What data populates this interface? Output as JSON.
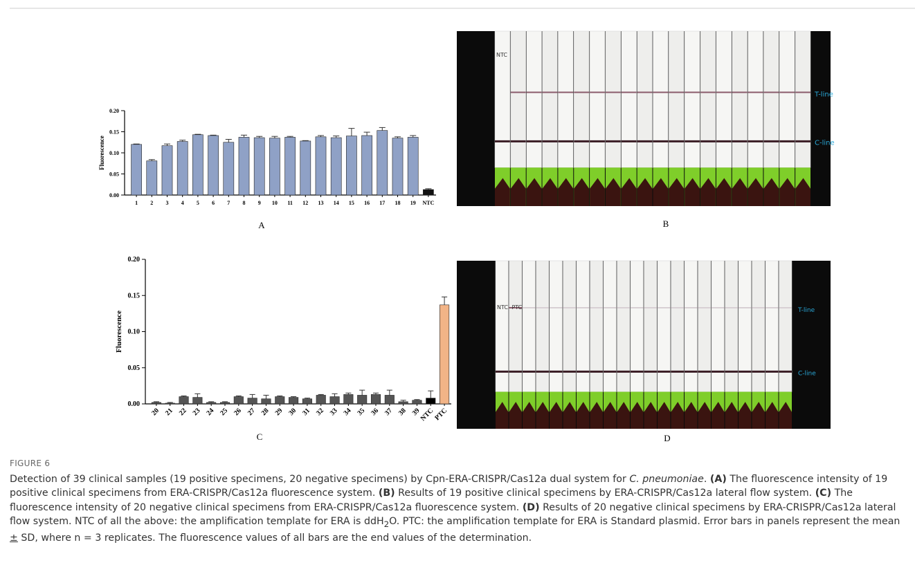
{
  "chart_data": [
    {
      "type": "bar",
      "y_label": "Fluorescence",
      "panel": "A",
      "categories": [
        "1",
        "2",
        "3",
        "4",
        "5",
        "6",
        "7",
        "8",
        "9",
        "10",
        "11",
        "12",
        "13",
        "14",
        "15",
        "16",
        "17",
        "18",
        "19",
        "NTC"
      ],
      "values": [
        0.12,
        0.081,
        0.117,
        0.127,
        0.143,
        0.141,
        0.125,
        0.137,
        0.136,
        0.135,
        0.137,
        0.128,
        0.138,
        0.136,
        0.14,
        0.141,
        0.153,
        0.135,
        0.137,
        0.013
      ],
      "errors": [
        0.001,
        0.003,
        0.004,
        0.003,
        0.001,
        0.001,
        0.007,
        0.005,
        0.003,
        0.004,
        0.002,
        0.001,
        0.003,
        0.004,
        0.018,
        0.008,
        0.007,
        0.003,
        0.004,
        0.002
      ],
      "colors": [
        "#8fa1c6",
        "#8fa1c6",
        "#8fa1c6",
        "#8fa1c6",
        "#8fa1c6",
        "#8fa1c6",
        "#8fa1c6",
        "#8fa1c6",
        "#8fa1c6",
        "#8fa1c6",
        "#8fa1c6",
        "#8fa1c6",
        "#8fa1c6",
        "#8fa1c6",
        "#8fa1c6",
        "#8fa1c6",
        "#8fa1c6",
        "#8fa1c6",
        "#8fa1c6",
        "#111111"
      ],
      "ylim": [
        0,
        0.2
      ],
      "yticks": [
        {
          "value": 0,
          "label": "0.00"
        },
        {
          "value": 0.05,
          "label": "0.05"
        },
        {
          "value": 0.1,
          "label": "0.10"
        },
        {
          "value": 0.15,
          "label": "0.15"
        },
        {
          "value": 0.2,
          "label": "0.20"
        }
      ]
    },
    {
      "type": "bar",
      "y_label": "Fluorescence",
      "panel": "C",
      "categories": [
        "20",
        "21",
        "22",
        "23",
        "24",
        "25",
        "26",
        "27",
        "28",
        "29",
        "30",
        "31",
        "32",
        "33",
        "34",
        "35",
        "36",
        "37",
        "38",
        "39",
        "NTC",
        "PTC"
      ],
      "values": [
        0.002,
        0.001,
        0.01,
        0.009,
        0.002,
        0.002,
        0.01,
        0.008,
        0.007,
        0.01,
        0.009,
        0.007,
        0.012,
        0.01,
        0.013,
        0.012,
        0.013,
        0.012,
        0.003,
        0.005,
        0.008,
        0.137
      ],
      "errors": [
        0.001,
        0.001,
        0.001,
        0.005,
        0.001,
        0.001,
        0.001,
        0.005,
        0.005,
        0.001,
        0.001,
        0.001,
        0.001,
        0.004,
        0.002,
        0.007,
        0.002,
        0.007,
        0.002,
        0.001,
        0.01,
        0.011
      ],
      "colors": [
        "#555555",
        "#555555",
        "#555555",
        "#555555",
        "#555555",
        "#555555",
        "#555555",
        "#555555",
        "#555555",
        "#555555",
        "#555555",
        "#555555",
        "#555555",
        "#555555",
        "#555555",
        "#555555",
        "#555555",
        "#555555",
        "#555555",
        "#555555",
        "#000000",
        "#f2b487"
      ],
      "ylim": [
        0,
        0.2
      ],
      "yticks": [
        {
          "value": 0,
          "label": "0.00"
        },
        {
          "value": 0.05,
          "label": "0.05"
        },
        {
          "value": 0.1,
          "label": "0.10"
        },
        {
          "value": 0.15,
          "label": "0.15"
        },
        {
          "value": 0.2,
          "label": "0.20"
        }
      ]
    }
  ],
  "photos": [
    {
      "panel": "B",
      "labels": [
        "NTC"
      ],
      "t_line": "T-line",
      "c_line": "C-line"
    },
    {
      "panel": "D",
      "labels": [
        "NTC",
        "PTC"
      ],
      "t_line": "T-line",
      "c_line": "C-line"
    }
  ],
  "caption": {
    "figure": "FIGURE 6",
    "parts": [
      "Detection of 39 clinical samples (19 positive specimens, 20 negative specimens) by Cpn-ERA-CRISPR/Cas12a dual system for ",
      "C. pneumoniae",
      ". ",
      "(A)",
      " The fluorescence intensity of 19 positive clinical specimens from ERA-CRISPR/Cas12a fluorescence system. ",
      "(B)",
      " Results of 19 positive clinical specimens by ERA-CRISPR/Cas12a lateral flow system. ",
      "(C)",
      " The fluorescence intensity of 20 negative clinical specimens from ERA-CRISPR/Cas12a fluorescence system. ",
      "(D)",
      " Results of 20 negative clinical specimens by ERA-CRISPR/Cas12a lateral flow system. NTC of all the above: the amplification template for ERA is ddH",
      "2",
      "O. PTC: the amplification template for ERA is Standard plasmid. Error bars in panels represent the mean ",
      "±",
      " SD, where n = 3 replicates. The fluorescence values of all bars are the end values of the determination."
    ]
  }
}
